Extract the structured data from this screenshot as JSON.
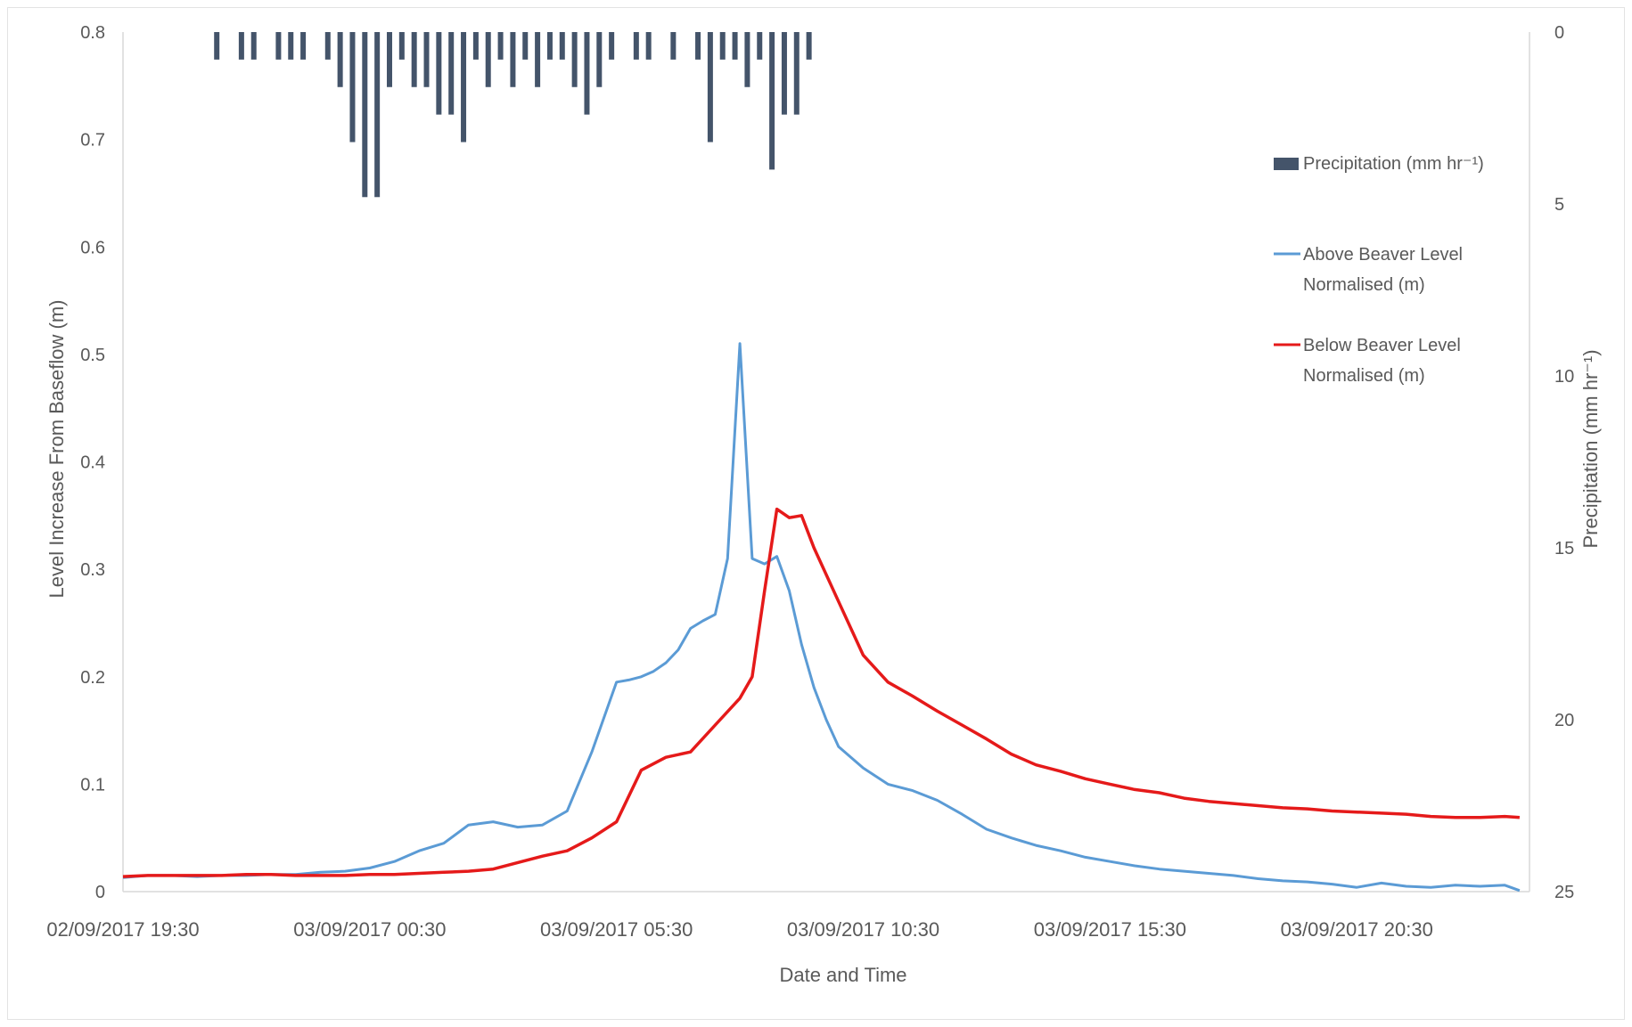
{
  "chart_data": {
    "type": "line",
    "xlabel": "Date and Time",
    "ylabel_left": "Level Increase From Baseflow (m)",
    "ylabel_right": "Precipitation (mm hr⁻¹)",
    "ylim_left": [
      0,
      0.8
    ],
    "yticks_left": [
      "0",
      "0.1",
      "0.2",
      "0.3",
      "0.4",
      "0.5",
      "0.6",
      "0.7",
      "0.8"
    ],
    "ylim_right": [
      0,
      25
    ],
    "yticks_right": [
      "0",
      "5",
      "10",
      "15",
      "20",
      "25"
    ],
    "right_axis_inverted": true,
    "xlim_hours": [
      0,
      28.5
    ],
    "xtick_labels": [
      "02/09/2017 19:30",
      "03/09/2017 00:30",
      "03/09/2017 05:30",
      "03/09/2017 10:30",
      "03/09/2017 15:30",
      "03/09/2017 20:30"
    ],
    "grid": false,
    "legend_position": "right",
    "series": [
      {
        "name": "Precipitation (mm hr⁻¹)",
        "type": "bar",
        "axis": "right",
        "color": "#44546a",
        "x_hours": [
          1.9,
          2.4,
          2.65,
          3.15,
          3.4,
          3.65,
          4.15,
          4.4,
          4.65,
          4.9,
          5.15,
          5.4,
          5.65,
          5.9,
          6.15,
          6.4,
          6.65,
          6.9,
          7.15,
          7.4,
          7.65,
          7.9,
          8.15,
          8.4,
          8.65,
          8.9,
          9.15,
          9.4,
          9.65,
          9.9,
          10.4,
          10.65,
          11.15,
          11.65,
          11.9,
          12.15,
          12.4,
          12.65,
          12.9,
          13.15,
          13.4,
          13.65,
          13.9
        ],
        "values": [
          0.8,
          0.8,
          0.8,
          0.8,
          0.8,
          0.8,
          0.8,
          1.6,
          3.2,
          4.8,
          4.8,
          1.6,
          0.8,
          1.6,
          1.6,
          2.4,
          2.4,
          3.2,
          0.8,
          1.6,
          0.8,
          1.6,
          0.8,
          1.6,
          0.8,
          0.8,
          1.6,
          2.4,
          1.6,
          0.8,
          0.8,
          0.8,
          0.8,
          0.8,
          3.2,
          0.8,
          0.8,
          1.6,
          0.8,
          4.0,
          2.4,
          2.4,
          0.8
        ]
      },
      {
        "name": "Above Beaver Level Normalised (m)",
        "type": "line",
        "axis": "left",
        "color": "#5b9bd5",
        "x_hours": [
          0,
          0.5,
          1,
          1.5,
          2,
          2.5,
          3,
          3.5,
          4,
          4.5,
          5,
          5.5,
          6,
          6.5,
          7,
          7.5,
          8,
          8.5,
          9,
          9.5,
          10,
          10.25,
          10.5,
          10.75,
          11,
          11.25,
          11.5,
          11.75,
          12,
          12.25,
          12.5,
          12.75,
          13,
          13.25,
          13.5,
          13.75,
          14,
          14.25,
          14.5,
          15,
          15.5,
          16,
          16.5,
          17,
          17.5,
          18,
          18.5,
          19,
          19.5,
          20,
          20.5,
          21,
          21.5,
          22,
          22.5,
          23,
          23.5,
          24,
          24.5,
          25,
          25.5,
          26,
          26.5,
          27,
          27.5,
          28,
          28.3
        ],
        "values": [
          0.013,
          0.015,
          0.015,
          0.014,
          0.015,
          0.015,
          0.016,
          0.016,
          0.018,
          0.019,
          0.022,
          0.028,
          0.038,
          0.045,
          0.062,
          0.065,
          0.06,
          0.062,
          0.075,
          0.13,
          0.195,
          0.197,
          0.2,
          0.205,
          0.213,
          0.225,
          0.245,
          0.252,
          0.258,
          0.31,
          0.51,
          0.31,
          0.305,
          0.312,
          0.28,
          0.23,
          0.19,
          0.16,
          0.135,
          0.115,
          0.1,
          0.094,
          0.085,
          0.072,
          0.058,
          0.05,
          0.043,
          0.038,
          0.032,
          0.028,
          0.024,
          0.021,
          0.019,
          0.017,
          0.015,
          0.012,
          0.01,
          0.009,
          0.007,
          0.004,
          0.008,
          0.005,
          0.004,
          0.006,
          0.005,
          0.006,
          0.001
        ]
      },
      {
        "name": "Below Beaver Level Normalised (m)",
        "type": "line",
        "axis": "left",
        "color": "#e51a1a",
        "x_hours": [
          0,
          0.5,
          1,
          1.5,
          2,
          2.5,
          3,
          3.5,
          4,
          4.5,
          5,
          5.5,
          6,
          6.5,
          7,
          7.5,
          8,
          8.5,
          9,
          9.5,
          10,
          10.5,
          11,
          11.5,
          12,
          12.5,
          12.75,
          13,
          13.25,
          13.5,
          13.75,
          14,
          14.5,
          15,
          15.5,
          16,
          16.5,
          17,
          17.5,
          18,
          18.5,
          19,
          19.5,
          20,
          20.5,
          21,
          21.5,
          22,
          22.5,
          23,
          23.5,
          24,
          24.5,
          25,
          25.5,
          26,
          26.5,
          27,
          27.5,
          28,
          28.3
        ],
        "values": [
          0.014,
          0.015,
          0.015,
          0.015,
          0.015,
          0.016,
          0.016,
          0.015,
          0.015,
          0.015,
          0.016,
          0.016,
          0.017,
          0.018,
          0.019,
          0.021,
          0.027,
          0.033,
          0.038,
          0.05,
          0.065,
          0.113,
          0.125,
          0.13,
          0.155,
          0.18,
          0.2,
          0.28,
          0.356,
          0.348,
          0.35,
          0.32,
          0.27,
          0.22,
          0.195,
          0.182,
          0.168,
          0.155,
          0.142,
          0.128,
          0.118,
          0.112,
          0.105,
          0.1,
          0.095,
          0.092,
          0.087,
          0.084,
          0.082,
          0.08,
          0.078,
          0.077,
          0.075,
          0.074,
          0.073,
          0.072,
          0.07,
          0.069,
          0.069,
          0.07,
          0.069
        ]
      }
    ]
  }
}
